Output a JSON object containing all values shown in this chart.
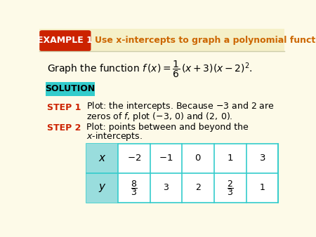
{
  "bg_color": "#FDFAE8",
  "header_bg": "#CC2200",
  "header_text": "EXAMPLE 1",
  "header_text_color": "#FFFFFF",
  "title_text": "Use x-intercepts to graph a polynomial function",
  "title_color": "#CC6600",
  "solution_bg": "#33CCCC",
  "solution_text": "SOLUTION",
  "solution_text_color": "#000000",
  "step_color": "#CC2200",
  "body_text_color": "#000000",
  "table_border_color": "#33CCCC",
  "table_header_bg": "#99DDDD",
  "header_line_color": "#CCCCAA"
}
